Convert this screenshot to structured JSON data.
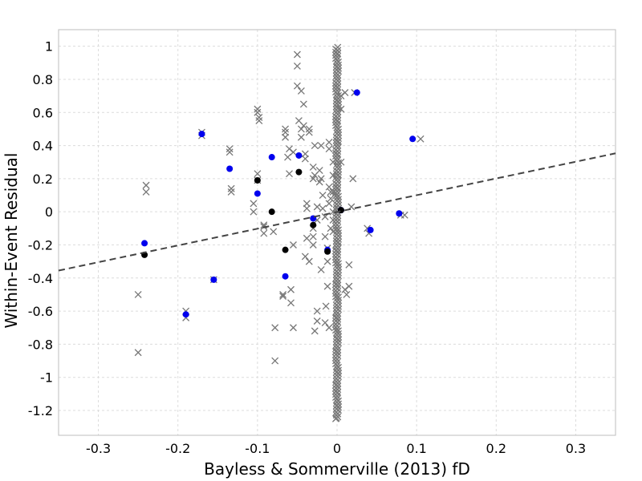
{
  "chart_data": {
    "type": "scatter",
    "xlabel": "Bayless & Sommerville (2013) fD",
    "ylabel": "Within-Event Residual",
    "xlim": [
      -0.35,
      0.35
    ],
    "ylim": [
      -1.35,
      1.1
    ],
    "xticks": [
      -0.3,
      -0.2,
      -0.1,
      0,
      0.1,
      0.2,
      0.3
    ],
    "xtick_labels": [
      "-0.3",
      "-0.2",
      "-0.1",
      "0",
      "0.1",
      "0.2",
      "0.3"
    ],
    "yticks": [
      -1.2,
      -1,
      -0.8,
      -0.6,
      -0.4,
      -0.2,
      0,
      0.2,
      0.4,
      0.6,
      0.8,
      1
    ],
    "ytick_labels": [
      "-1.2",
      "-1",
      "-0.8",
      "-0.6",
      "-0.4",
      "-0.2",
      "0",
      "0.2",
      "0.4",
      "0.6",
      "0.8",
      "1"
    ],
    "grid": true,
    "colors": {
      "crosses": "#777777",
      "blue": "#0000ee",
      "black": "#000000",
      "fit_line": "#444444"
    },
    "series": [
      {
        "marker": "x",
        "color": "#777777",
        "x": [
          -0.17,
          -0.17,
          -0.24,
          -0.24,
          -0.25,
          -0.25,
          -0.19,
          -0.19,
          -0.155,
          -0.135,
          -0.135,
          -0.133,
          -0.133,
          -0.1,
          -0.1,
          -0.098,
          -0.098,
          -0.1,
          -0.1,
          -0.105,
          -0.105,
          -0.092,
          -0.092,
          -0.092,
          -0.08,
          -0.078,
          -0.078,
          -0.065,
          -0.065,
          -0.068,
          -0.068,
          -0.055,
          -0.055,
          -0.058,
          -0.058,
          -0.05,
          -0.05,
          -0.05,
          -0.048,
          -0.045,
          -0.045,
          -0.045,
          -0.042,
          -0.042,
          -0.04,
          -0.04,
          -0.035,
          -0.035,
          -0.03,
          -0.03,
          -0.028,
          -0.028,
          -0.025,
          -0.025,
          -0.022,
          -0.022,
          -0.02,
          -0.02,
          -0.018,
          -0.018,
          -0.015,
          -0.015,
          -0.012,
          -0.012,
          -0.01,
          -0.01,
          -0.01,
          -0.01,
          -0.008,
          -0.008,
          -0.008,
          -0.005,
          -0.005,
          -0.005,
          -0.005,
          -0.005,
          -0.005,
          -0.038,
          -0.038,
          -0.038,
          -0.03,
          -0.03,
          -0.03,
          -0.02,
          -0.025,
          -0.025,
          -0.028,
          -0.04,
          -0.035,
          -0.012,
          -0.014,
          -0.015,
          -0.01,
          0.005,
          0.005,
          0.005,
          0.01,
          0.01,
          0.012,
          0.015,
          0.015,
          0.018,
          0.02,
          0.022,
          0.038,
          0.04,
          0.08,
          0.085,
          0.105,
          -0.06,
          -0.06,
          -0.062,
          -0.055,
          -0.065
        ],
        "y": [
          0.48,
          0.46,
          0.12,
          0.16,
          -0.5,
          -0.85,
          -0.6,
          -0.64,
          -0.41,
          0.38,
          0.36,
          0.12,
          0.14,
          0.62,
          0.6,
          0.55,
          0.57,
          0.23,
          0.19,
          0.05,
          0.0,
          -0.08,
          -0.09,
          -0.13,
          -0.12,
          -0.7,
          -0.9,
          0.5,
          0.48,
          -0.5,
          -0.51,
          -0.2,
          -0.7,
          -0.55,
          -0.47,
          0.95,
          0.88,
          0.76,
          0.55,
          0.5,
          0.45,
          0.73,
          0.65,
          0.52,
          0.35,
          0.32,
          0.5,
          0.48,
          0.27,
          0.2,
          0.4,
          0.22,
          0.03,
          -0.05,
          0.25,
          0.18,
          0.4,
          0.2,
          0.1,
          0.02,
          -0.03,
          -0.15,
          -0.22,
          -0.3,
          0.42,
          0.38,
          0.15,
          0.05,
          0.12,
          0.08,
          -0.1,
          0.3,
          0.22,
          0.12,
          0.0,
          -0.05,
          -0.12,
          0.05,
          0.02,
          -0.16,
          -0.1,
          -0.15,
          -0.2,
          -0.35,
          -0.6,
          -0.66,
          -0.72,
          -0.27,
          -0.3,
          -0.45,
          -0.57,
          -0.67,
          -0.7,
          0.3,
          0.7,
          0.62,
          0.72,
          -0.47,
          -0.5,
          -0.45,
          -0.32,
          0.03,
          0.2,
          0.72,
          -0.1,
          -0.13,
          -0.02,
          -0.02,
          0.44,
          0.38,
          0.23,
          0.33,
          0.36,
          0.45
        ]
      },
      {
        "marker": "circle",
        "color": "#0000ee",
        "x": [
          -0.17,
          -0.135,
          -0.1,
          -0.082,
          -0.048,
          -0.242,
          -0.19,
          -0.155,
          -0.065,
          -0.03,
          -0.012,
          0.005,
          0.025,
          0.042,
          0.078,
          0.095
        ],
        "y": [
          0.47,
          0.26,
          0.11,
          0.33,
          0.34,
          -0.19,
          -0.62,
          -0.41,
          -0.39,
          -0.04,
          -0.23,
          0.01,
          0.72,
          -0.11,
          -0.01,
          0.44
        ]
      },
      {
        "marker": "circle",
        "color": "#000000",
        "x": [
          -0.242,
          -0.1,
          -0.082,
          -0.065,
          -0.048,
          -0.03,
          -0.012,
          0.005
        ],
        "y": [
          -0.26,
          0.19,
          0.0,
          -0.23,
          0.24,
          -0.08,
          -0.24,
          0.01
        ]
      },
      {
        "marker": "dashed-line",
        "color": "#444444",
        "x": [
          -0.35,
          0.35
        ],
        "y": [
          -0.355,
          0.353
        ]
      }
    ],
    "dense_column": {
      "x": 0.0,
      "y_min": -1.25,
      "y_max": 1.0,
      "count": 260
    }
  }
}
